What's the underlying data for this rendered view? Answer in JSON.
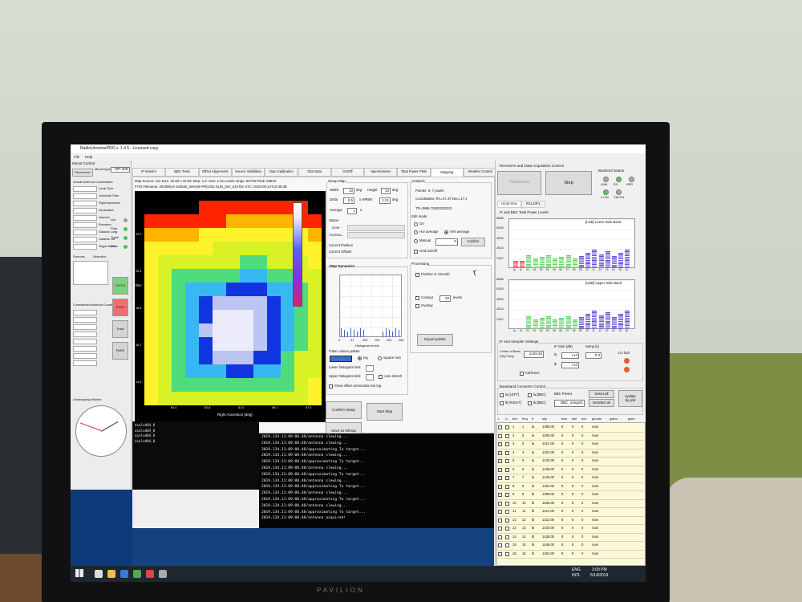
{
  "window": {
    "title": "RadioUniversePRO v. 1.4.5 - Licensed copy",
    "menu": [
      "File",
      "Help"
    ]
  },
  "mount": {
    "title": "Mount Control",
    "type_label": "Mount type",
    "type": "WP-40D",
    "disconnect": "Disconnect",
    "coords_title": "Actual Antenna Coordinates",
    "fields": [
      "Local Time",
      "Universal Time",
      "Right Ascension",
      "Declination",
      "Azimuth",
      "Elevation",
      "Galactic Long",
      "Galactic Lat",
      "Target Name"
    ],
    "status": [
      "Lim",
      "Park",
      "Track",
      "Slew"
    ],
    "sources": "Sources",
    "selection": "Selection",
    "commanded": "Commanded Antenna Coordinates",
    "unwrap": "Unwrapping Monitor",
    "buttons": [
      "GOTO",
      "STOP",
      "Track",
      "PARK"
    ]
  },
  "tabs": [
    "IF Monitor",
    "BBC Tests",
    "Offset Alignments",
    "Source Visibilities",
    "Gain Calibration",
    "Obs Data",
    "On/Off",
    "Spectrometer",
    "Total Power Plots",
    "Mapping",
    "Weather Control"
  ],
  "mapping": {
    "header": [
      "Map Source: sun   Size: 10.83 x 10.83'   Step: 1.2'   Aver: 1.0s   Levels range: 50729   Peak: 53533",
      "FITS Filename: 20190514-104530_IMAGE-PROJ01-SUN_01#_01#.fits   UTC: 2019-05-14T10:45:38"
    ],
    "y_label": "Dec",
    "y_ticks": [
      "22.2",
      "20.4",
      "18.6",
      "16.7",
      "14.9"
    ],
    "x_ticks": [
      "54.4",
      "52.8",
      "51.0",
      "49.1",
      "47.3"
    ],
    "x_label": "Right Ascension [deg]"
  },
  "setup": {
    "title": "Setup Map",
    "width_label": "Width",
    "width": "10",
    "height_label": "Height",
    "height": "10",
    "unit": "deg",
    "delta_label": "Delta",
    "delta": "0.5",
    "hpbw": "x HPBW",
    "delta_deg": "1.21",
    "average_label": "Average",
    "average": "1",
    "seconds": "s",
    "status": "Status",
    "now": "NOW",
    "overall": "OVERALL",
    "position": "Current Position",
    "offsets": "Current Offsets"
  },
  "dynamics": {
    "title": "Map Dynamics",
    "ticks": [
      "0",
      "51",
      "102",
      "153",
      "204",
      "255"
    ],
    "x_label": "Histogram levels",
    "palette": "False colours palette",
    "log": "log",
    "sqrt": "square root",
    "lower": "Lower histogram limit",
    "upper": "Upper histogram limit",
    "auto": "Auto stretch",
    "show_offsets": "Show offset commands into log"
  },
  "buttons": {
    "confirm": "Confirm Setup",
    "start": "Start Map",
    "save": "Save as bitmap"
  },
  "analysis": {
    "title": "Analysis",
    "pointer": "Pointer: 9, 7 pixels",
    "coords": "Coordinates: RA=47.37  Dec=17.4",
    "tp": "TP=3956.70833333333",
    "edit": "Edit mode",
    "on": "On",
    "hor": "Hor average",
    "vert": "Vert average",
    "manual": "Manual",
    "manual_value": "0",
    "confirm": "Confirm",
    "grid": "Grid On/Off"
  },
  "processing": {
    "title": "Processing",
    "pixelize": "Pixelize or Smooth",
    "contour": "Contour",
    "levels_value": "20",
    "levels": "levels",
    "overlay": "Overlay",
    "export": "Export palette"
  },
  "receivers": {
    "title": "Receivers and Data Acquisition Control",
    "disconnect": "Disconnect",
    "stop": "Stop",
    "backend": "Backend Status",
    "leds": [
      "LINK",
      "RX",
      "ERR",
      "L.CAL",
      "CALON"
    ],
    "tabs": [
      "H142-One",
      "RAL10FL"
    ],
    "levels_title": "IF and BBC Total Power Levels",
    "lsb": "[LSB] Lower Side Band",
    "usb": "[USB] Upper Side Band",
    "y_ticks": [
      "65536",
      "52429",
      "39322",
      "26214",
      "13107"
    ],
    "channels": [
      "la",
      "lb",
      "01",
      "02",
      "03",
      "04",
      "05",
      "06",
      "07",
      "08",
      "09",
      "10",
      "11",
      "12",
      "13",
      "14",
      "15",
      "16"
    ]
  },
  "sampler": {
    "title": "IF and Sampler Settings",
    "center": [
      "Center of Band",
      "(Sky Freq)"
    ],
    "center_value": "1429.25",
    "gain": "IF Gain (dB)",
    "samp": "Samp (s)",
    "la": "la",
    "lb": "lb",
    "la_gain": "+14",
    "lb_gain": "+14",
    "samp_value": "0.3",
    "lo": "LO lock",
    "caltones": "CalTones"
  },
  "bbc": {
    "title": "Baseband Converter Control",
    "la_left": "la [LEFT]",
    "lb_right": "lb [RIGHT]",
    "la_bbc": "la [BBC]",
    "lb_bbc": "lb [BBC]",
    "preset": "BBC Preset",
    "preset_value": "BBC_setup01",
    "select": "Select all",
    "deselect": "Deselect all",
    "update": [
      "Update",
      "by grid"
    ],
    "columns": [
      "L",
      "U",
      "bbc",
      "freq",
      "if",
      "sky",
      "bwu",
      "bwl",
      "ave",
      "gmode",
      "gainu",
      "gainl"
    ],
    "rows": [
      [
        "1",
        "1",
        "la",
        "1398.00",
        "8",
        "8",
        "0",
        "man"
      ],
      [
        "2",
        "2",
        "la",
        "1406.00",
        "8",
        "8",
        "0",
        "man"
      ],
      [
        "3",
        "3",
        "la",
        "1414.00",
        "8",
        "8",
        "0",
        "man"
      ],
      [
        "4",
        "4",
        "la",
        "1422.00",
        "8",
        "8",
        "0",
        "man"
      ],
      [
        "5",
        "5",
        "la",
        "1430.00",
        "8",
        "8",
        "0",
        "man"
      ],
      [
        "6",
        "6",
        "la",
        "1438.00",
        "8",
        "8",
        "0",
        "man"
      ],
      [
        "7",
        "7",
        "la",
        "1446.00",
        "8",
        "8",
        "0",
        "man"
      ],
      [
        "8",
        "8",
        "la",
        "1454.00",
        "8",
        "8",
        "0",
        "man"
      ],
      [
        "9",
        "9",
        "lb",
        "1398.00",
        "8",
        "8",
        "0",
        "man"
      ],
      [
        "10",
        "10",
        "lb",
        "1406.00",
        "8",
        "8",
        "0",
        "man"
      ],
      [
        "11",
        "11",
        "lb",
        "1414.00",
        "8",
        "8",
        "0",
        "man"
      ],
      [
        "12",
        "12",
        "lb",
        "1422.00",
        "8",
        "8",
        "0",
        "man"
      ],
      [
        "13",
        "13",
        "lb",
        "1430.00",
        "8",
        "8",
        "0",
        "man"
      ],
      [
        "14",
        "14",
        "lb",
        "1438.00",
        "8",
        "8",
        "0",
        "man"
      ],
      [
        "15",
        "15",
        "lb",
        "1446.00",
        "8",
        "8",
        "0",
        "man"
      ],
      [
        "16",
        "16",
        "lb",
        "1454.00",
        "8",
        "8",
        "0",
        "man"
      ]
    ]
  },
  "log": [
    "2019.134.11:09:08.48/antenna slewing...",
    "2019.134.11:09:08.48/antenna slewing...",
    "2019.134.11:09:08.48/approximating To target...",
    "2019.134.11:09:08.48/antenna slewing...",
    "2019.134.11:09:08.48/approximating To target...",
    "2019.134.11:09:08.48/antenna slewing...",
    "2019.134.11:09:08.48/approximating To target...",
    "2019.134.11:09:08.48/antenna slewing...",
    "2019.134.11:09:08.48/approximating To target...",
    "2019.134.11:09:08.48/antenna slewing...",
    "2019.134.11:09:08.48/approximating To target...",
    "2019.134.11:09:08.48/antenna slewing...",
    "2019.134.11:09:08.48/approximating To target...",
    "2019.134.11:09:08.48/antenna acquired!"
  ],
  "console": [
    "asalod04_0",
    "asalod04_0",
    "asalod04_0",
    "asalod04_0"
  ],
  "taskbar": {
    "lang": "ENG",
    "layout": "INTL",
    "time": "3:09 PM",
    "date": "5/14/2019"
  },
  "monitor": {
    "brand": "PAVILION"
  }
}
